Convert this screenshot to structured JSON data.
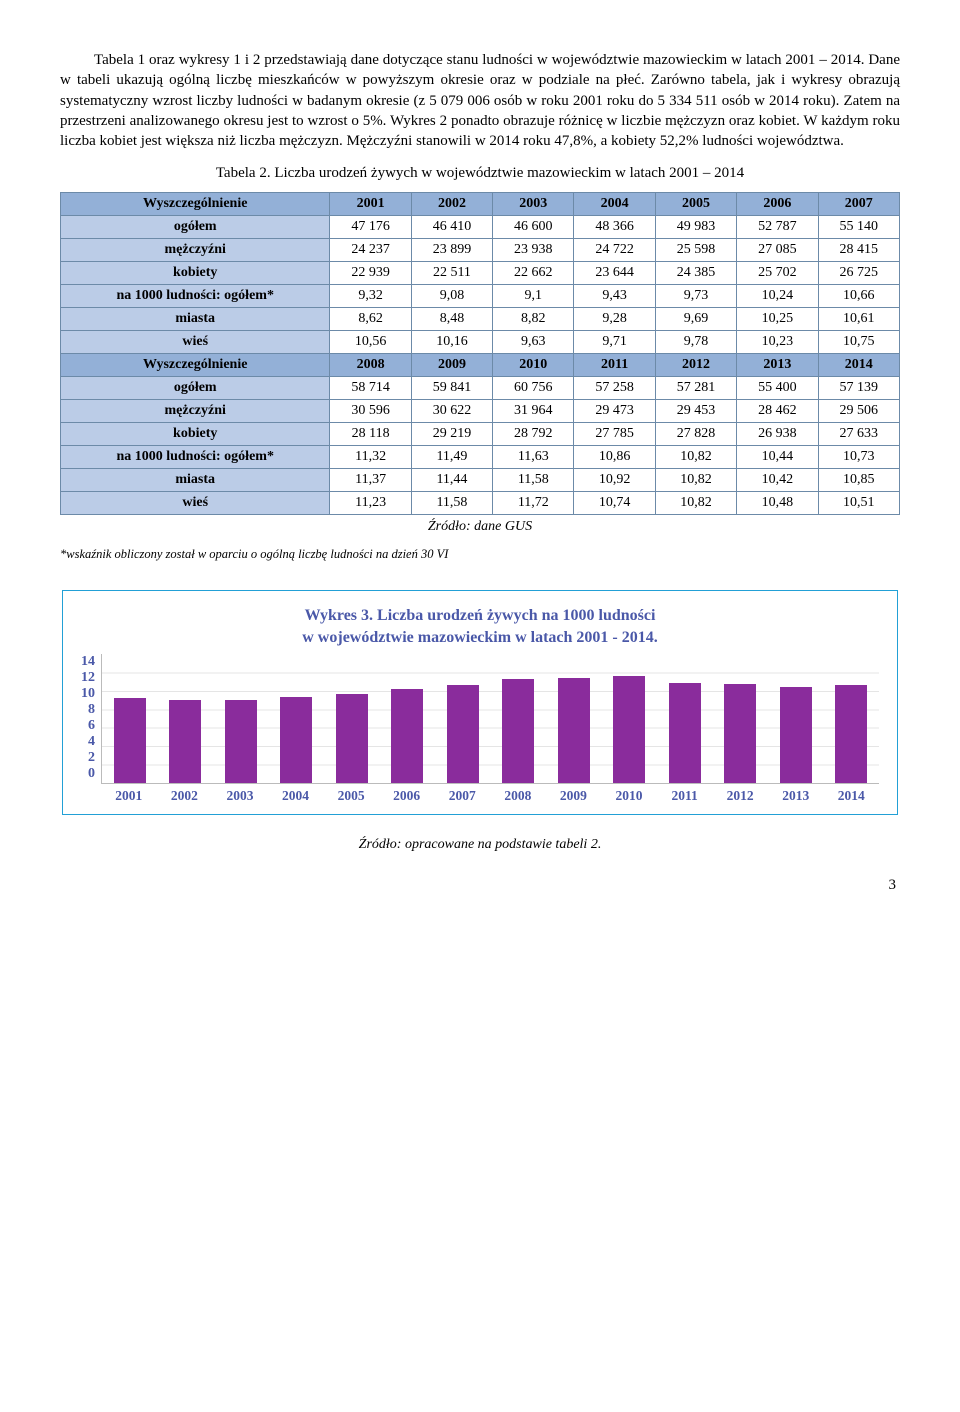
{
  "paragraph": "Tabela 1 oraz wykresy 1 i 2 przedstawiają dane dotyczące stanu ludności w województwie mazowieckim w latach 2001 – 2014. Dane w tabeli ukazują ogólną liczbę mieszkańców w powyższym okresie oraz w podziale na płeć. Zarówno tabela, jak i wykresy obrazują systematyczny wzrost liczby ludności w badanym okresie (z 5 079 006 osób w roku 2001 roku do 5 334 511 osób w 2014 roku). Zatem na przestrzeni analizowanego okresu jest to wzrost o 5%. Wykres 2 ponadto obrazuje różnicę w liczbie mężczyzn oraz kobiet. W każdym roku liczba kobiet jest większa niż liczba mężczyzn. Mężczyźni stanowili w 2014 roku 47,8%, a kobiety 52,2% ludności województwa.",
  "table_caption": "Tabela 2. Liczba urodzeń żywych w województwie mazowieckim w latach 2001 – 2014",
  "table": {
    "header_bg": "#93b0d7",
    "header_row_bg": "#bbcce7",
    "border_color": "#6c8aa8",
    "sections": [
      {
        "years": [
          "2001",
          "2002",
          "2003",
          "2004",
          "2005",
          "2006",
          "2007"
        ],
        "rows": [
          {
            "label": "ogółem",
            "vals": [
              "47 176",
              "46 410",
              "46 600",
              "48 366",
              "49 983",
              "52 787",
              "55 140"
            ]
          },
          {
            "label": "mężczyźni",
            "vals": [
              "24 237",
              "23 899",
              "23 938",
              "24 722",
              "25 598",
              "27 085",
              "28 415"
            ]
          },
          {
            "label": "kobiety",
            "vals": [
              "22 939",
              "22 511",
              "22 662",
              "23 644",
              "24 385",
              "25 702",
              "26 725"
            ]
          },
          {
            "label": "na 1000 ludności: ogółem*",
            "vals": [
              "9,32",
              "9,08",
              "9,1",
              "9,43",
              "9,73",
              "10,24",
              "10,66"
            ]
          },
          {
            "label": "miasta",
            "vals": [
              "8,62",
              "8,48",
              "8,82",
              "9,28",
              "9,69",
              "10,25",
              "10,61"
            ]
          },
          {
            "label": "wieś",
            "vals": [
              "10,56",
              "10,16",
              "9,63",
              "9,71",
              "9,78",
              "10,23",
              "10,75"
            ]
          }
        ]
      },
      {
        "years": [
          "2008",
          "2009",
          "2010",
          "2011",
          "2012",
          "2013",
          "2014"
        ],
        "rows": [
          {
            "label": "ogółem",
            "vals": [
              "58 714",
              "59 841",
              "60 756",
              "57 258",
              "57 281",
              "55 400",
              "57 139"
            ]
          },
          {
            "label": "mężczyźni",
            "vals": [
              "30 596",
              "30 622",
              "31 964",
              "29 473",
              "29 453",
              "28 462",
              "29 506"
            ]
          },
          {
            "label": "kobiety",
            "vals": [
              "28 118",
              "29 219",
              "28 792",
              "27 785",
              "27 828",
              "26 938",
              "27 633"
            ]
          },
          {
            "label": "na 1000 ludności: ogółem*",
            "vals": [
              "11,32",
              "11,49",
              "11,63",
              "10,86",
              "10,82",
              "10,44",
              "10,73"
            ]
          },
          {
            "label": "miasta",
            "vals": [
              "11,37",
              "11,44",
              "11,58",
              "10,92",
              "10,82",
              "10,42",
              "10,85"
            ]
          },
          {
            "label": "wieś",
            "vals": [
              "11,23",
              "11,58",
              "11,72",
              "10,74",
              "10,82",
              "10,48",
              "10,51"
            ]
          }
        ]
      }
    ],
    "row_header_label": "Wyszczególnienie",
    "source": "Źródło: dane GUS"
  },
  "footnote": "*wskaźnik obliczony został w oparciu o ogólną liczbę ludności na dzień 30 VI",
  "chart": {
    "title_line1": "Wykres 3. Liczba urodzeń żywych na 1000 ludności",
    "title_line2": "w województwie mazowieckim w latach 2001 - 2014.",
    "y_ticks": [
      "14",
      "12",
      "10",
      "8",
      "6",
      "4",
      "2",
      "0"
    ],
    "ymax": 14,
    "bar_color": "#8a2c9c",
    "categories": [
      "2001",
      "2002",
      "2003",
      "2004",
      "2005",
      "2006",
      "2007",
      "2008",
      "2009",
      "2010",
      "2011",
      "2012",
      "2013",
      "2014"
    ],
    "values": [
      9.32,
      9.08,
      9.1,
      9.43,
      9.73,
      10.24,
      10.66,
      11.32,
      11.49,
      11.63,
      10.86,
      10.82,
      10.44,
      10.73
    ],
    "source": "Źródło: opracowane na podstawie tabeli 2."
  },
  "page_number": "3"
}
